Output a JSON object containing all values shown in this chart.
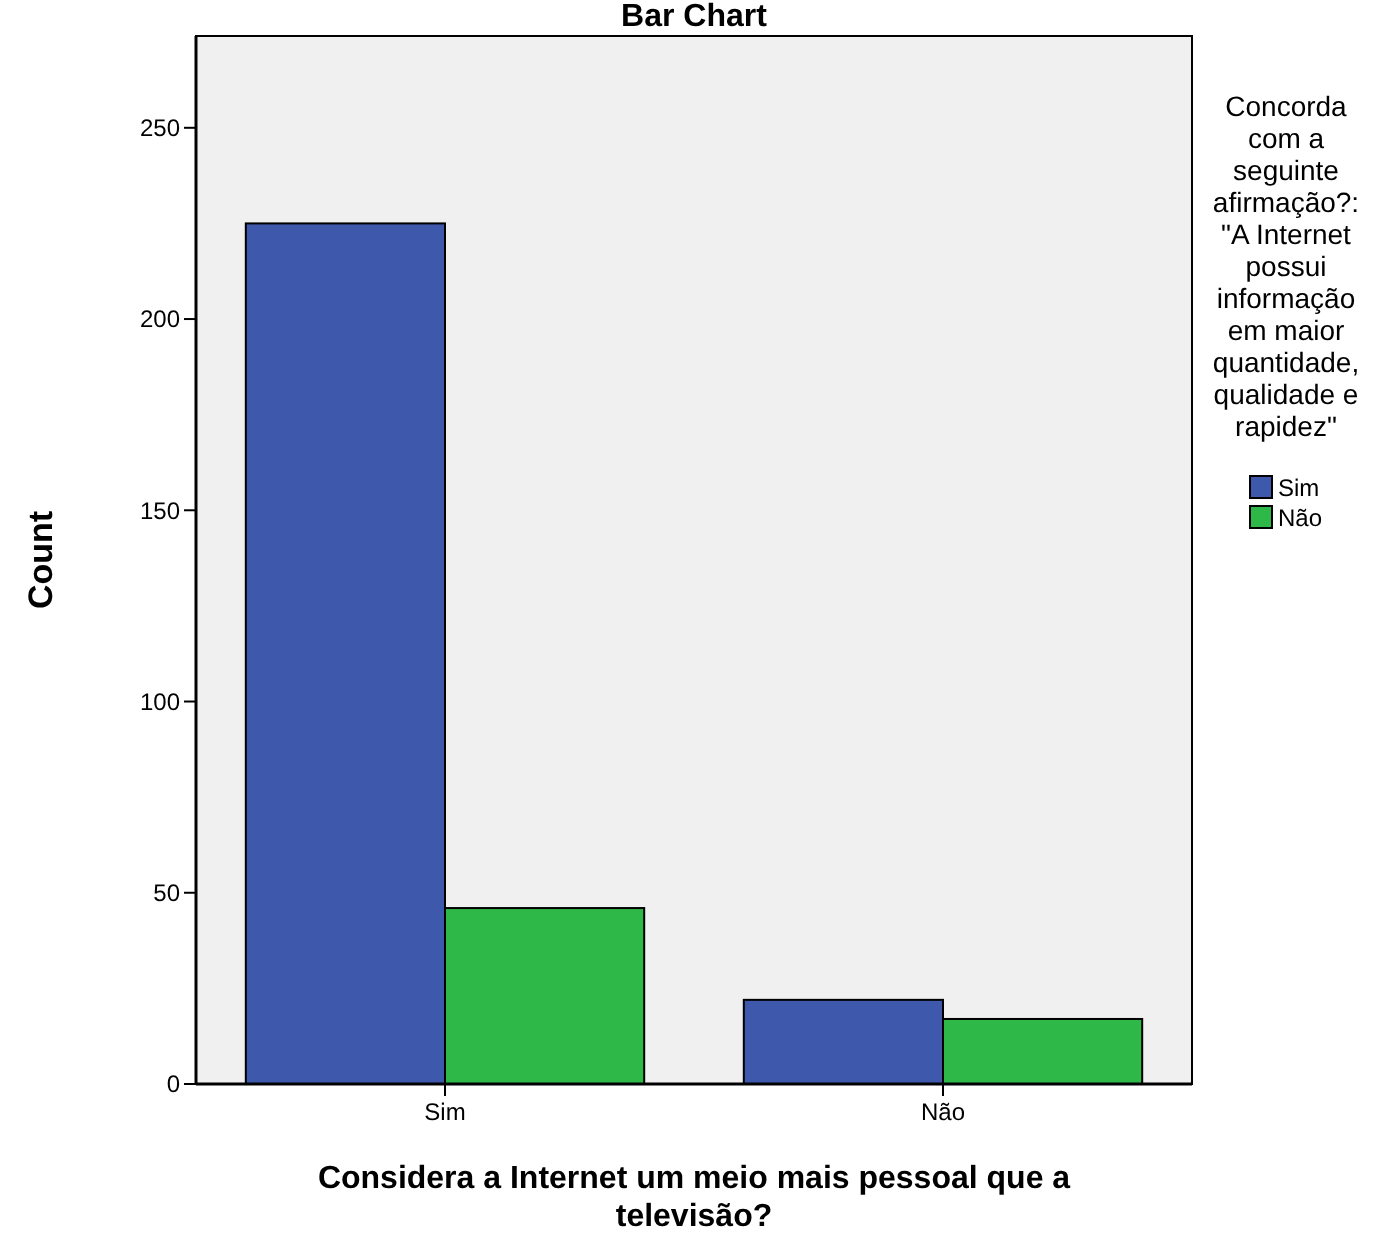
{
  "chart_data": {
    "type": "bar",
    "title": "Bar Chart",
    "xlabel": "Considera a Internet um meio mais pessoal que a televisão?",
    "ylabel": "Count",
    "legend_title": "Concorda com a seguinte afirmação?: \"A Internet possui informação em maior quantidade, qualidade e rapidez\"",
    "categories": [
      "Sim",
      "Não"
    ],
    "series": [
      {
        "name": "Sim",
        "color": "#3e58ac",
        "values": [
          225,
          22
        ]
      },
      {
        "name": "Não",
        "color": "#2eb848",
        "values": [
          46,
          17
        ]
      }
    ],
    "ylim": [
      0,
      274
    ],
    "yticks": [
      0,
      50,
      100,
      150,
      200,
      250
    ],
    "legend": "right",
    "grid": false
  }
}
